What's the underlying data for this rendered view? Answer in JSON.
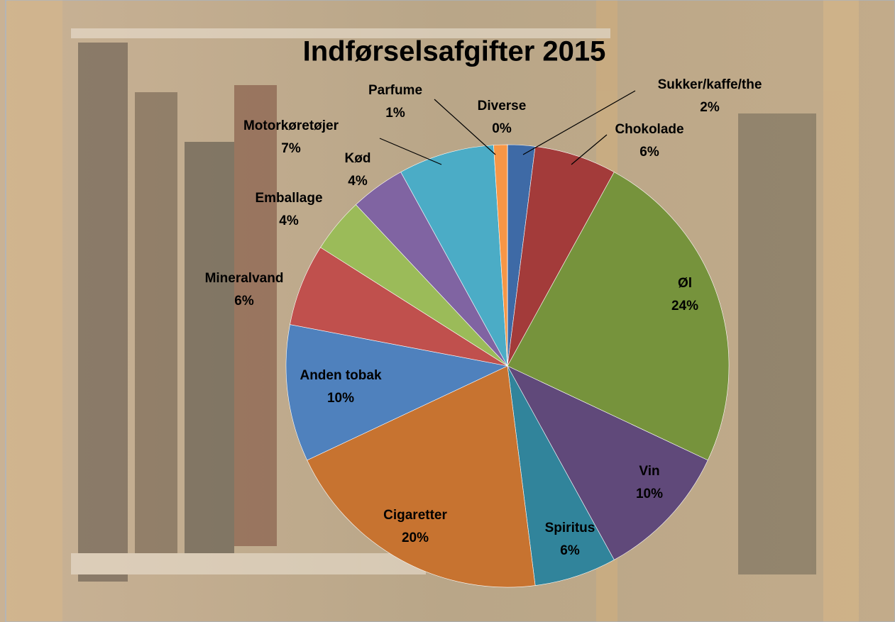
{
  "chart_data": {
    "type": "pie",
    "title": "Indførselsafgifter 2015",
    "categories": [
      "Sukker/kaffe/the",
      "Chokolade",
      "Øl",
      "Vin",
      "Spiritus",
      "Cigaretter",
      "Anden tobak",
      "Mineralvand",
      "Emballage",
      "Kød",
      "Motorkøretøjer",
      "Parfume",
      "Diverse"
    ],
    "values": [
      2,
      6,
      24,
      10,
      6,
      20,
      10,
      6,
      4,
      4,
      7,
      1,
      0
    ],
    "value_labels": [
      "2%",
      "6%",
      "24%",
      "10%",
      "6%",
      "20%",
      "10%",
      "6%",
      "4%",
      "4%",
      "7%",
      "1%",
      "0%"
    ],
    "colors": [
      "#3e6aa6",
      "#a33b3a",
      "#76933c",
      "#60497a",
      "#31849b",
      "#c77330",
      "#4f81bd",
      "#c0504d",
      "#9bbb59",
      "#8064a2",
      "#4bacc6",
      "#f79646",
      "#95b3d7"
    ]
  }
}
